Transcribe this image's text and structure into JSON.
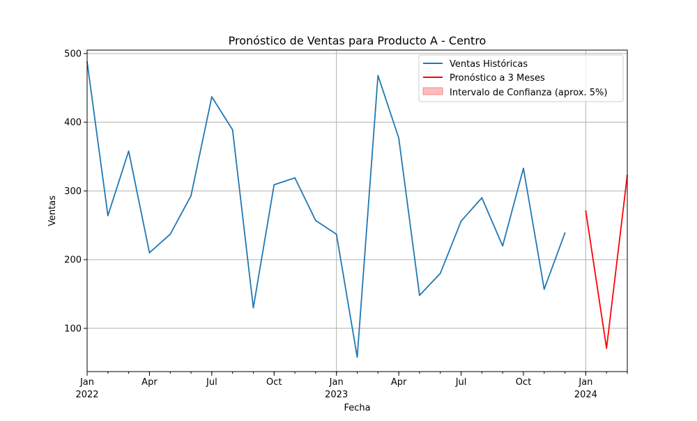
{
  "chart_data": {
    "type": "line",
    "title": "Pronóstico de Ventas para Producto A - Centro",
    "xlabel": "Fecha",
    "ylabel": "Ventas",
    "xlim": [
      "2022-01",
      "2024-03"
    ],
    "ylim": [
      37,
      505
    ],
    "grid": true,
    "legend_position": "top-right",
    "x_ticks_major": [
      {
        "label": "Jan",
        "year": "2022",
        "date": "2022-01"
      },
      {
        "label": "Apr",
        "year": "",
        "date": "2022-04"
      },
      {
        "label": "Jul",
        "year": "",
        "date": "2022-07"
      },
      {
        "label": "Oct",
        "year": "",
        "date": "2022-10"
      },
      {
        "label": "Jan",
        "year": "2023",
        "date": "2023-01"
      },
      {
        "label": "Apr",
        "year": "",
        "date": "2023-04"
      },
      {
        "label": "Jul",
        "year": "",
        "date": "2023-07"
      },
      {
        "label": "Oct",
        "year": "",
        "date": "2023-10"
      },
      {
        "label": "Jan",
        "year": "2024",
        "date": "2024-01"
      }
    ],
    "y_ticks": [
      "100",
      "200",
      "300",
      "400",
      "500"
    ],
    "series": [
      {
        "name": "Ventas Históricas",
        "color": "#1f77b4",
        "x": [
          "2022-01",
          "2022-02",
          "2022-03",
          "2022-04",
          "2022-05",
          "2022-06",
          "2022-07",
          "2022-08",
          "2022-09",
          "2022-10",
          "2022-11",
          "2022-12",
          "2023-01",
          "2023-02",
          "2023-03",
          "2023-04",
          "2023-05",
          "2023-06",
          "2023-07",
          "2023-08",
          "2023-09",
          "2023-10",
          "2023-11",
          "2023-12"
        ],
        "values": [
          488,
          264,
          358,
          210,
          237,
          293,
          437,
          389,
          130,
          309,
          319,
          257,
          237,
          58,
          468,
          377,
          148,
          180,
          256,
          290,
          220,
          333,
          157,
          239
        ]
      },
      {
        "name": "Pronóstico a 3 Meses",
        "color": "#ff0000",
        "x": [
          "2024-01",
          "2024-02",
          "2024-03"
        ],
        "values": [
          271,
          71,
          323
        ]
      }
    ],
    "confidence_interval": {
      "name": "Intervalo de Confianza (aprox. 5%)",
      "color": "#ffbcbc",
      "border_color": "#f08c8c"
    }
  }
}
